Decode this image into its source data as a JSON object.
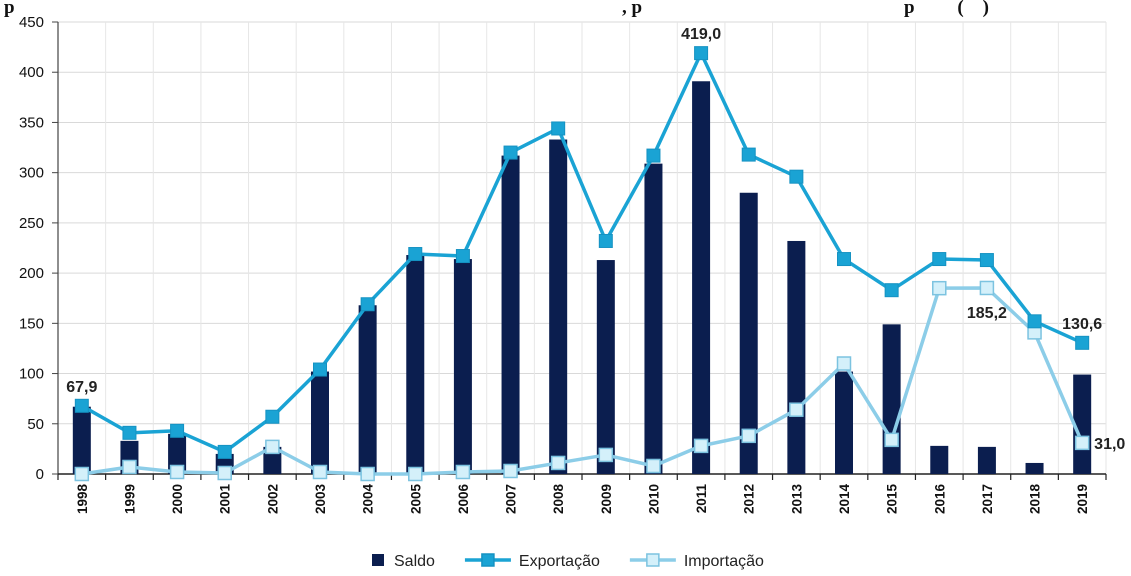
{
  "header_fragment": {
    "left": "p",
    "mid": ", p",
    "right": "p         (    )"
  },
  "chart_data": {
    "type": "bar",
    "categories": [
      "1998",
      "1999",
      "2000",
      "2001",
      "2002",
      "2003",
      "2004",
      "2005",
      "2006",
      "2007",
      "2008",
      "2009",
      "2010",
      "2011",
      "2012",
      "2013",
      "2014",
      "2015",
      "2016",
      "2017",
      "2018",
      "2019"
    ],
    "ylim": [
      0,
      450
    ],
    "yticks": [
      0,
      50,
      100,
      150,
      200,
      250,
      300,
      350,
      400,
      450
    ],
    "grid": true,
    "legend_position": "bottom-center",
    "series": [
      {
        "name": "Saldo",
        "kind": "bar",
        "color": "#0b1e4f",
        "values": [
          67,
          33,
          40,
          20,
          27,
          102,
          168,
          218,
          214,
          317,
          333,
          213,
          309,
          391,
          280,
          232,
          102,
          149,
          28,
          27,
          11,
          99
        ]
      },
      {
        "name": "Exportação",
        "kind": "line",
        "color": "#1aa3d4",
        "values": [
          67.9,
          41,
          43,
          22,
          57,
          104,
          169,
          219,
          217,
          320,
          344,
          232,
          317,
          419.0,
          318,
          296,
          214,
          183,
          214,
          213,
          152,
          130.6
        ]
      },
      {
        "name": "Importação",
        "kind": "line",
        "color": "#8ccde8",
        "values": [
          0,
          7,
          2,
          1,
          27,
          2,
          0,
          0,
          2,
          3,
          11,
          19,
          8,
          28,
          38,
          64,
          110,
          34,
          185,
          185.2,
          141,
          31.0
        ]
      }
    ],
    "annotations": [
      {
        "series": "Exportação",
        "category": "1998",
        "text": "67,9"
      },
      {
        "series": "Exportação",
        "category": "2011",
        "text": "419,0"
      },
      {
        "series": "Importação",
        "category": "2017",
        "text": "185,2"
      },
      {
        "series": "Exportação",
        "category": "2019",
        "text": "130,6"
      },
      {
        "series": "Importação",
        "category": "2019",
        "text": "31,0"
      }
    ]
  }
}
